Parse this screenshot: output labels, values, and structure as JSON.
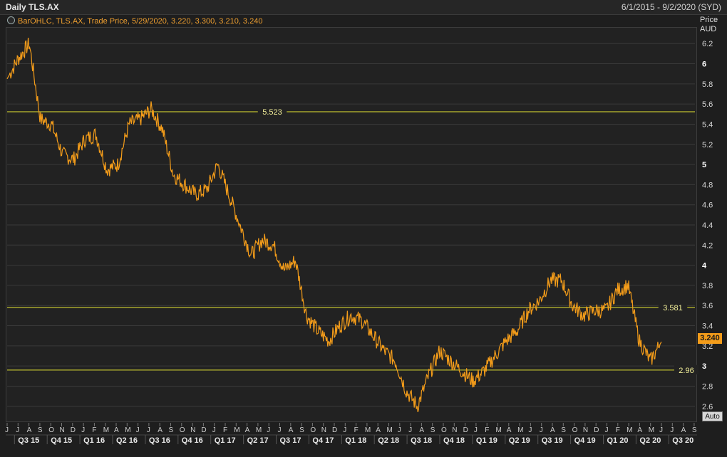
{
  "header": {
    "title": "Daily TLS.AX",
    "date_range": "6/1/2015 - 9/2/2020 (SYD)"
  },
  "legend": {
    "text": "BarOHLC, TLS.AX, Trade Price, 5/29/2020, 3.220, 3.300, 3.210, 3.240"
  },
  "axis": {
    "unit_line1": "Price",
    "unit_line2": "AUD",
    "last_value": "3.240",
    "auto_label": "Auto"
  },
  "colors": {
    "series": "#f39c1a",
    "hline": "#e6e632",
    "grid": "#3a3a3a",
    "background": "#222222"
  },
  "chart_data": {
    "type": "line",
    "title": "Daily TLS.AX",
    "ylabel": "Price AUD",
    "ylim": [
      2.45,
      6.35
    ],
    "yticks": [
      "2.6",
      "2.8",
      "3",
      "3.2",
      "3.4",
      "3.6",
      "3.8",
      "4",
      "4.2",
      "4.4",
      "4.6",
      "4.8",
      "5",
      "5.2",
      "5.4",
      "5.6",
      "5.8",
      "6",
      "6.2"
    ],
    "major_yticks": [
      "3",
      "4",
      "5",
      "6"
    ],
    "grid": true,
    "month_ticks": [
      "J",
      "J",
      "A",
      "S",
      "O",
      "N",
      "D",
      "J",
      "F",
      "M",
      "A",
      "M",
      "J",
      "J",
      "A",
      "S",
      "O",
      "N",
      "D",
      "J",
      "F",
      "M",
      "A",
      "M",
      "J",
      "J",
      "A",
      "S",
      "O",
      "N",
      "D",
      "J",
      "F",
      "M",
      "A",
      "M",
      "J",
      "J",
      "A",
      "S",
      "O",
      "N",
      "D",
      "J",
      "F",
      "M",
      "A",
      "M",
      "J",
      "J",
      "A",
      "S",
      "O",
      "N",
      "D",
      "J",
      "F",
      "M",
      "A",
      "M",
      "J",
      "J",
      "A",
      "S"
    ],
    "quarter_ticks": [
      "Q3 15",
      "Q4 15",
      "Q1 16",
      "Q2 16",
      "Q3 16",
      "Q4 16",
      "Q1 17",
      "Q2 17",
      "Q3 17",
      "Q4 17",
      "Q1 18",
      "Q2 18",
      "Q3 18",
      "Q4 18",
      "Q1 19",
      "Q2 19",
      "Q3 19",
      "Q4 19",
      "Q1 20",
      "Q2 20",
      "Q3 20"
    ],
    "series": [
      {
        "x": [
          "2015-06",
          "2015-07",
          "2015-08",
          "2015-09",
          "2015-10",
          "2015-11",
          "2015-12",
          "2016-01",
          "2016-02",
          "2016-03",
          "2016-04",
          "2016-05",
          "2016-06",
          "2016-07",
          "2016-08",
          "2016-09",
          "2016-10",
          "2016-11",
          "2016-12",
          "2017-01",
          "2017-02",
          "2017-03",
          "2017-04",
          "2017-05",
          "2017-06",
          "2017-07",
          "2017-08",
          "2017-09",
          "2017-10",
          "2017-11",
          "2017-12",
          "2018-01",
          "2018-02",
          "2018-03",
          "2018-04",
          "2018-05",
          "2018-06",
          "2018-07",
          "2018-08",
          "2018-09",
          "2018-10",
          "2018-11",
          "2018-12",
          "2019-01",
          "2019-02",
          "2019-03",
          "2019-04",
          "2019-05",
          "2019-06",
          "2019-07",
          "2019-08",
          "2019-09",
          "2019-10",
          "2019-11",
          "2019-12",
          "2020-01",
          "2020-02",
          "2020-03",
          "2020-04",
          "2020-05"
        ],
        "values": [
          5.85,
          6.05,
          6.2,
          5.45,
          5.4,
          5.1,
          5.05,
          5.25,
          5.3,
          4.95,
          5.0,
          5.4,
          5.45,
          5.55,
          5.35,
          4.9,
          4.8,
          4.7,
          4.75,
          5.0,
          4.7,
          4.4,
          4.1,
          4.25,
          4.2,
          3.95,
          4.05,
          3.5,
          3.35,
          3.25,
          3.4,
          3.5,
          3.45,
          3.3,
          3.15,
          3.05,
          2.75,
          2.6,
          2.9,
          3.15,
          3.05,
          2.95,
          2.85,
          2.95,
          3.1,
          3.25,
          3.35,
          3.55,
          3.65,
          3.85,
          3.85,
          3.6,
          3.5,
          3.55,
          3.55,
          3.75,
          3.8,
          3.25,
          3.05,
          3.24
        ]
      }
    ],
    "hlines": [
      {
        "label": "5.523",
        "value": 5.523
      },
      {
        "label": "3.581",
        "value": 3.581
      },
      {
        "label": "2.96",
        "value": 2.96
      }
    ]
  }
}
